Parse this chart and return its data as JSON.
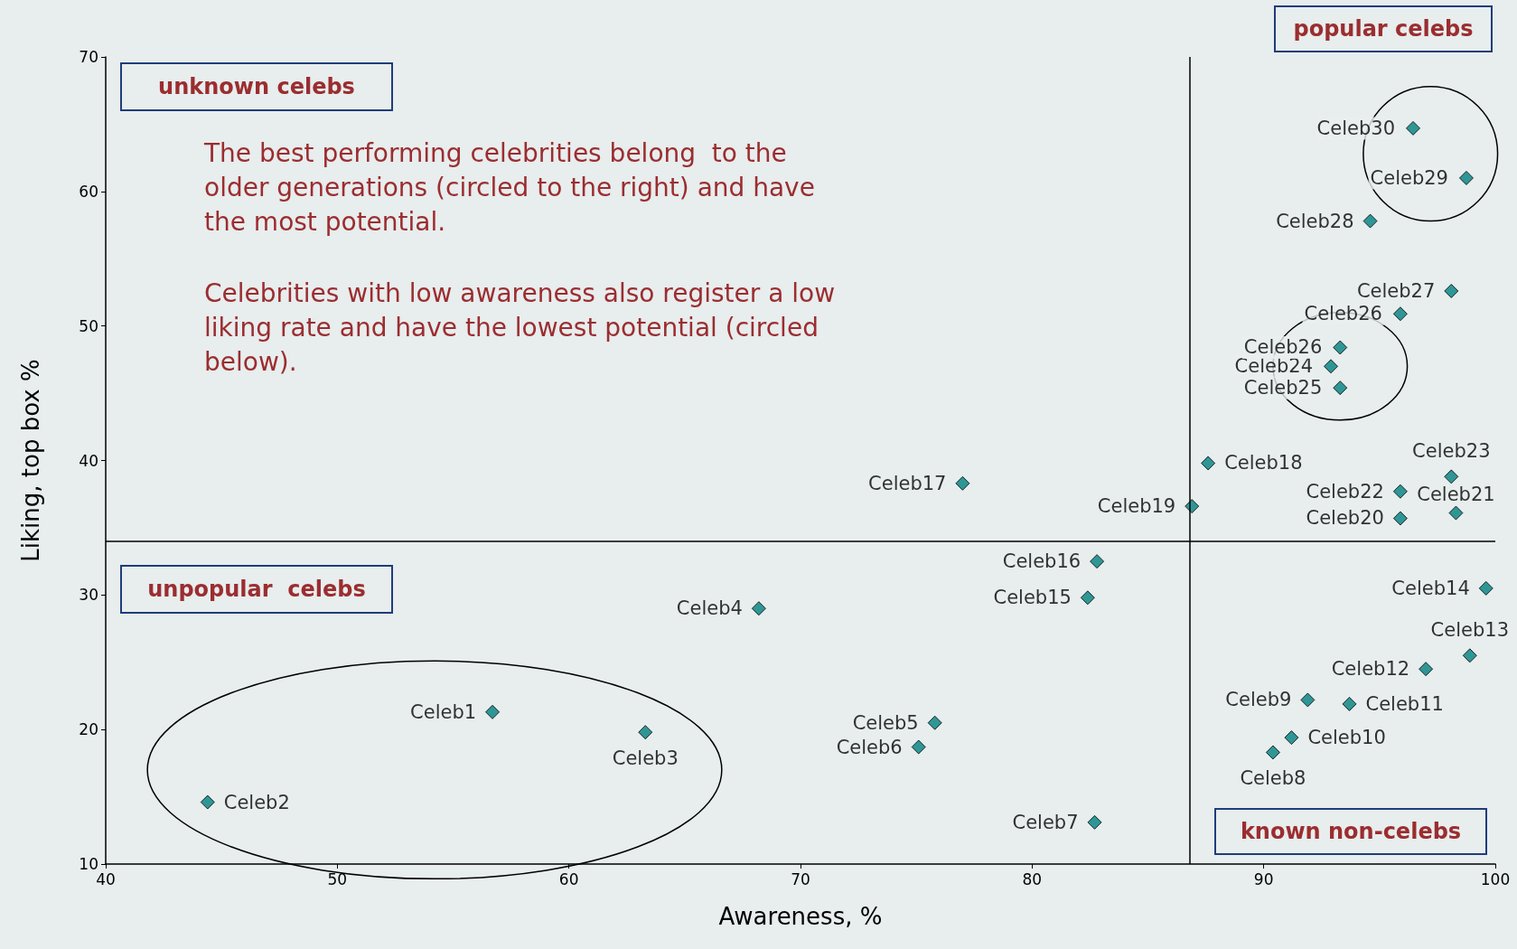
{
  "chart_data": {
    "type": "scatter",
    "xlabel": "Awareness, %",
    "ylabel": "Liking, top box %",
    "xlim": [
      40,
      100
    ],
    "ylim": [
      10,
      70
    ],
    "xticks": [
      40,
      50,
      60,
      70,
      80,
      90,
      100
    ],
    "yticks": [
      10,
      20,
      30,
      40,
      50,
      60,
      70
    ],
    "grid": false,
    "legend": false,
    "marker": "diamond",
    "ref_lines": [
      {
        "axis": "x",
        "value": 86.8,
        "color": "#000000"
      },
      {
        "axis": "y",
        "value": 34,
        "color": "#000000"
      }
    ],
    "annotations": [
      "popular celebs",
      "unknown celebs",
      "unpopular  celebs",
      "known non-celebs",
      "The best performing celebrities belong  to the older generations (circled to the right) and have the most potential.",
      "Celebrities with low awareness also register a low liking rate and have the lowest potential (circled below)."
    ],
    "series": [
      {
        "name": "Celeb1",
        "color": "#008080",
        "x": [
          56.7
        ],
        "values": [
          21.3
        ]
      },
      {
        "name": "Celeb2",
        "color": "#008080",
        "x": [
          44.4
        ],
        "values": [
          14.6
        ]
      },
      {
        "name": "Celeb3",
        "color": "#008080",
        "x": [
          63.3
        ],
        "values": [
          19.8
        ]
      },
      {
        "name": "Celeb4",
        "color": "#008080",
        "x": [
          68.2
        ],
        "values": [
          29.0
        ]
      },
      {
        "name": "Celeb5",
        "color": "#008080",
        "x": [
          75.8
        ],
        "values": [
          20.5
        ]
      },
      {
        "name": "Celeb6",
        "color": "#008080",
        "x": [
          75.1
        ],
        "values": [
          18.7
        ]
      },
      {
        "name": "Celeb7",
        "color": "#008080",
        "x": [
          82.7
        ],
        "values": [
          13.1
        ]
      },
      {
        "name": "Celeb8",
        "color": "#008080",
        "x": [
          90.4
        ],
        "values": [
          18.3
        ]
      },
      {
        "name": "Celeb9",
        "color": "#008080",
        "x": [
          91.9
        ],
        "values": [
          22.2
        ]
      },
      {
        "name": "Celeb10",
        "color": "#008080",
        "x": [
          91.2
        ],
        "values": [
          19.4
        ]
      },
      {
        "name": "Celeb11",
        "color": "#008080",
        "x": [
          93.7
        ],
        "values": [
          21.9
        ]
      },
      {
        "name": "Celeb12",
        "color": "#008080",
        "x": [
          97.0
        ],
        "values": [
          24.5
        ]
      },
      {
        "name": "Celeb13",
        "color": "#008080",
        "x": [
          98.9
        ],
        "values": [
          25.5
        ]
      },
      {
        "name": "Celeb14",
        "color": "#008080",
        "x": [
          99.6
        ],
        "values": [
          30.5
        ]
      },
      {
        "name": "Celeb15",
        "color": "#008080",
        "x": [
          82.4
        ],
        "values": [
          29.8
        ]
      },
      {
        "name": "Celeb16",
        "color": "#008080",
        "x": [
          82.8
        ],
        "values": [
          32.5
        ]
      },
      {
        "name": "Celeb17",
        "color": "#008080",
        "x": [
          77.0
        ],
        "values": [
          38.3
        ]
      },
      {
        "name": "Celeb18",
        "color": "#008080",
        "x": [
          87.6
        ],
        "values": [
          39.8
        ]
      },
      {
        "name": "Celeb19",
        "color": "#008080",
        "x": [
          86.9
        ],
        "values": [
          36.6
        ]
      },
      {
        "name": "Celeb20",
        "color": "#008080",
        "x": [
          95.9
        ],
        "values": [
          35.7
        ]
      },
      {
        "name": "Celeb21",
        "color": "#008080",
        "x": [
          98.3
        ],
        "values": [
          36.1
        ]
      },
      {
        "name": "Celeb22",
        "color": "#008080",
        "x": [
          95.9
        ],
        "values": [
          37.7
        ]
      },
      {
        "name": "Celeb23",
        "color": "#008080",
        "x": [
          98.1
        ],
        "values": [
          38.8
        ]
      },
      {
        "name": "Celeb24",
        "color": "#008080",
        "x": [
          92.9
        ],
        "values": [
          47.0
        ]
      },
      {
        "name": "Celeb25",
        "color": "#008080",
        "x": [
          93.3
        ],
        "values": [
          45.4
        ]
      },
      {
        "name": "Celeb26",
        "color": "#008080",
        "x": [
          93.3
        ],
        "values": [
          48.4
        ]
      },
      {
        "name": "Celeb26",
        "color": "#008080",
        "x": [
          95.9
        ],
        "values": [
          50.9
        ]
      },
      {
        "name": "Celeb27",
        "color": "#008080",
        "x": [
          98.1
        ],
        "values": [
          52.6
        ]
      },
      {
        "name": "Celeb28",
        "color": "#008080",
        "x": [
          94.6
        ],
        "values": [
          57.8
        ]
      },
      {
        "name": "Celeb29",
        "color": "#008080",
        "x": [
          98.75
        ],
        "values": [
          61.0
        ]
      },
      {
        "name": "Celeb30",
        "color": "#008080",
        "x": [
          96.45
        ],
        "values": [
          64.7
        ]
      }
    ]
  }
}
